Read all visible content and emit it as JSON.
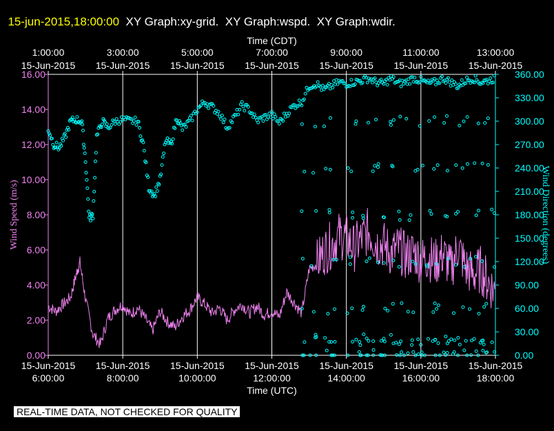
{
  "header": {
    "timestamp": "15-jun-2015,18:00:00",
    "graphs": "XY Graph:xy-grid.  XY Graph:wspd.  XY Graph:wdir."
  },
  "notice": "REAL-TIME DATA, NOT CHECKED FOR QUALITY",
  "colors": {
    "timestamp": "#ffff00",
    "wspd": "#ee82ee",
    "wdir": "#00ffff",
    "grid": "#ffffff"
  },
  "chart_data": {
    "type": "line",
    "top_axis_title": "Time (CDT)",
    "top_ticks": [
      [
        "1:00:00",
        "15-Jun-2015"
      ],
      [
        "3:00:00",
        "15-Jun-2015"
      ],
      [
        "5:00:00",
        "15-Jun-2015"
      ],
      [
        "7:00:00",
        "15-Jun-2015"
      ],
      [
        "9:00:00",
        "15-Jun-2015"
      ],
      [
        "11:00:00",
        "15-Jun-2015"
      ],
      [
        "13:00:00",
        "15-Jun-2015"
      ]
    ],
    "xlabel": "Time (UTC)",
    "bottom_ticks": [
      [
        "15-Jun-2015",
        "6:00:00"
      ],
      [
        "15-Jun-2015",
        "8:00:00"
      ],
      [
        "15-Jun-2015",
        "10:00:00"
      ],
      [
        "15-Jun-2015",
        "12:00:00"
      ],
      [
        "15-Jun-2015",
        "14:00:00"
      ],
      [
        "15-Jun-2015",
        "16:00:00"
      ],
      [
        "15-Jun-2015",
        "18:00:00"
      ]
    ],
    "xlim": [
      6,
      18
    ],
    "left_axis": {
      "label": "Wind Speed (m/s)",
      "ylim": [
        0,
        16
      ],
      "ticks": [
        "0.00",
        "2.00",
        "4.00",
        "6.00",
        "8.00",
        "10.00",
        "12.00",
        "14.00",
        "16.00"
      ]
    },
    "right_axis": {
      "label": "Wind Direction (degrees)",
      "ylim": [
        0,
        360
      ],
      "ticks": [
        "0.00",
        "30.00",
        "60.00",
        "90.00",
        "120.00",
        "150.00",
        "180.00",
        "210.00",
        "240.00",
        "270.00",
        "300.00",
        "330.00",
        "360.00"
      ]
    },
    "grid": true,
    "series": [
      {
        "key": "wspd",
        "style": "line",
        "axis": "left",
        "x": [
          6.0,
          6.2,
          6.4,
          6.6,
          6.75,
          6.85,
          7.0,
          7.2,
          7.4,
          7.6,
          7.8,
          8.0,
          8.2,
          8.4,
          8.6,
          8.8,
          9.0,
          9.2,
          9.4,
          9.6,
          9.8,
          10.0,
          10.2,
          10.4,
          10.6,
          10.8,
          11.0,
          11.2,
          11.4,
          11.6,
          11.8,
          12.0,
          12.2,
          12.4,
          12.6,
          12.8,
          13.0,
          13.2,
          13.4,
          13.6,
          13.8,
          14.0,
          14.2,
          14.4,
          14.6,
          14.8,
          15.0,
          15.2,
          15.4,
          15.6,
          15.8,
          16.0,
          16.2,
          16.4,
          16.6,
          16.8,
          17.0,
          17.2,
          17.4,
          17.6,
          17.8,
          18.0
        ],
        "y": [
          2.8,
          2.5,
          2.9,
          3.3,
          4.6,
          5.3,
          3.2,
          1.2,
          0.6,
          2.1,
          2.6,
          2.9,
          2.3,
          2.7,
          2.1,
          1.4,
          2.5,
          1.9,
          1.6,
          2.2,
          2.6,
          3.3,
          2.9,
          2.4,
          2.7,
          2.0,
          2.6,
          2.9,
          2.4,
          2.8,
          2.3,
          2.5,
          2.2,
          3.6,
          3.0,
          2.4,
          4.9,
          5.2,
          5.9,
          6.3,
          6.8,
          6.7,
          6.1,
          6.6,
          7.1,
          6.4,
          6.3,
          5.8,
          6.1,
          5.6,
          5.9,
          5.4,
          5.6,
          5.3,
          5.8,
          4.9,
          6.2,
          5.0,
          4.6,
          4.9,
          4.2,
          3.6
        ]
      },
      {
        "key": "wdir",
        "style": "points",
        "axis": "right",
        "x": [
          6.0,
          6.15,
          6.3,
          6.45,
          6.6,
          6.75,
          6.9,
          7.0,
          7.1,
          7.2,
          7.3,
          7.45,
          7.6,
          7.8,
          8.0,
          8.2,
          8.4,
          8.55,
          8.7,
          8.85,
          9.0,
          9.15,
          9.3,
          9.45,
          9.6,
          9.8,
          10.0,
          10.2,
          10.4,
          10.6,
          10.8,
          11.0,
          11.2,
          11.4,
          11.6,
          11.8,
          12.0,
          12.2,
          12.4,
          12.6,
          12.8,
          13.0,
          13.2,
          13.4,
          13.6,
          13.8,
          14.0,
          14.2,
          14.4,
          14.6,
          14.8,
          15.0,
          15.2,
          15.4,
          15.6,
          15.8,
          16.0,
          16.2,
          16.4,
          16.6,
          16.8,
          17.0,
          17.2,
          17.4,
          17.6,
          17.8,
          18.0
        ],
        "y": [
          290,
          270,
          266,
          280,
          300,
          302,
          300,
          250,
          175,
          180,
          280,
          300,
          292,
          300,
          302,
          300,
          300,
          270,
          215,
          205,
          225,
          275,
          270,
          305,
          290,
          300,
          315,
          325,
          318,
          310,
          292,
          305,
          320,
          315,
          300,
          305,
          308,
          298,
          310,
          320,
          325,
          345,
          348,
          340,
          345,
          350,
          348,
          350,
          352,
          355,
          350,
          348,
          355,
          348,
          350,
          355,
          352,
          348,
          350,
          355,
          350,
          345,
          352,
          355,
          350,
          352,
          355
        ],
        "scatter_levels": [
          0,
          20,
          60,
          120,
          180,
          240,
          300
        ],
        "scatter_times": [
          13.0,
          13.6,
          14.2,
          14.6,
          15.0,
          15.4,
          15.8,
          16.2,
          16.6,
          17.0,
          17.4,
          17.8
        ]
      }
    ]
  }
}
